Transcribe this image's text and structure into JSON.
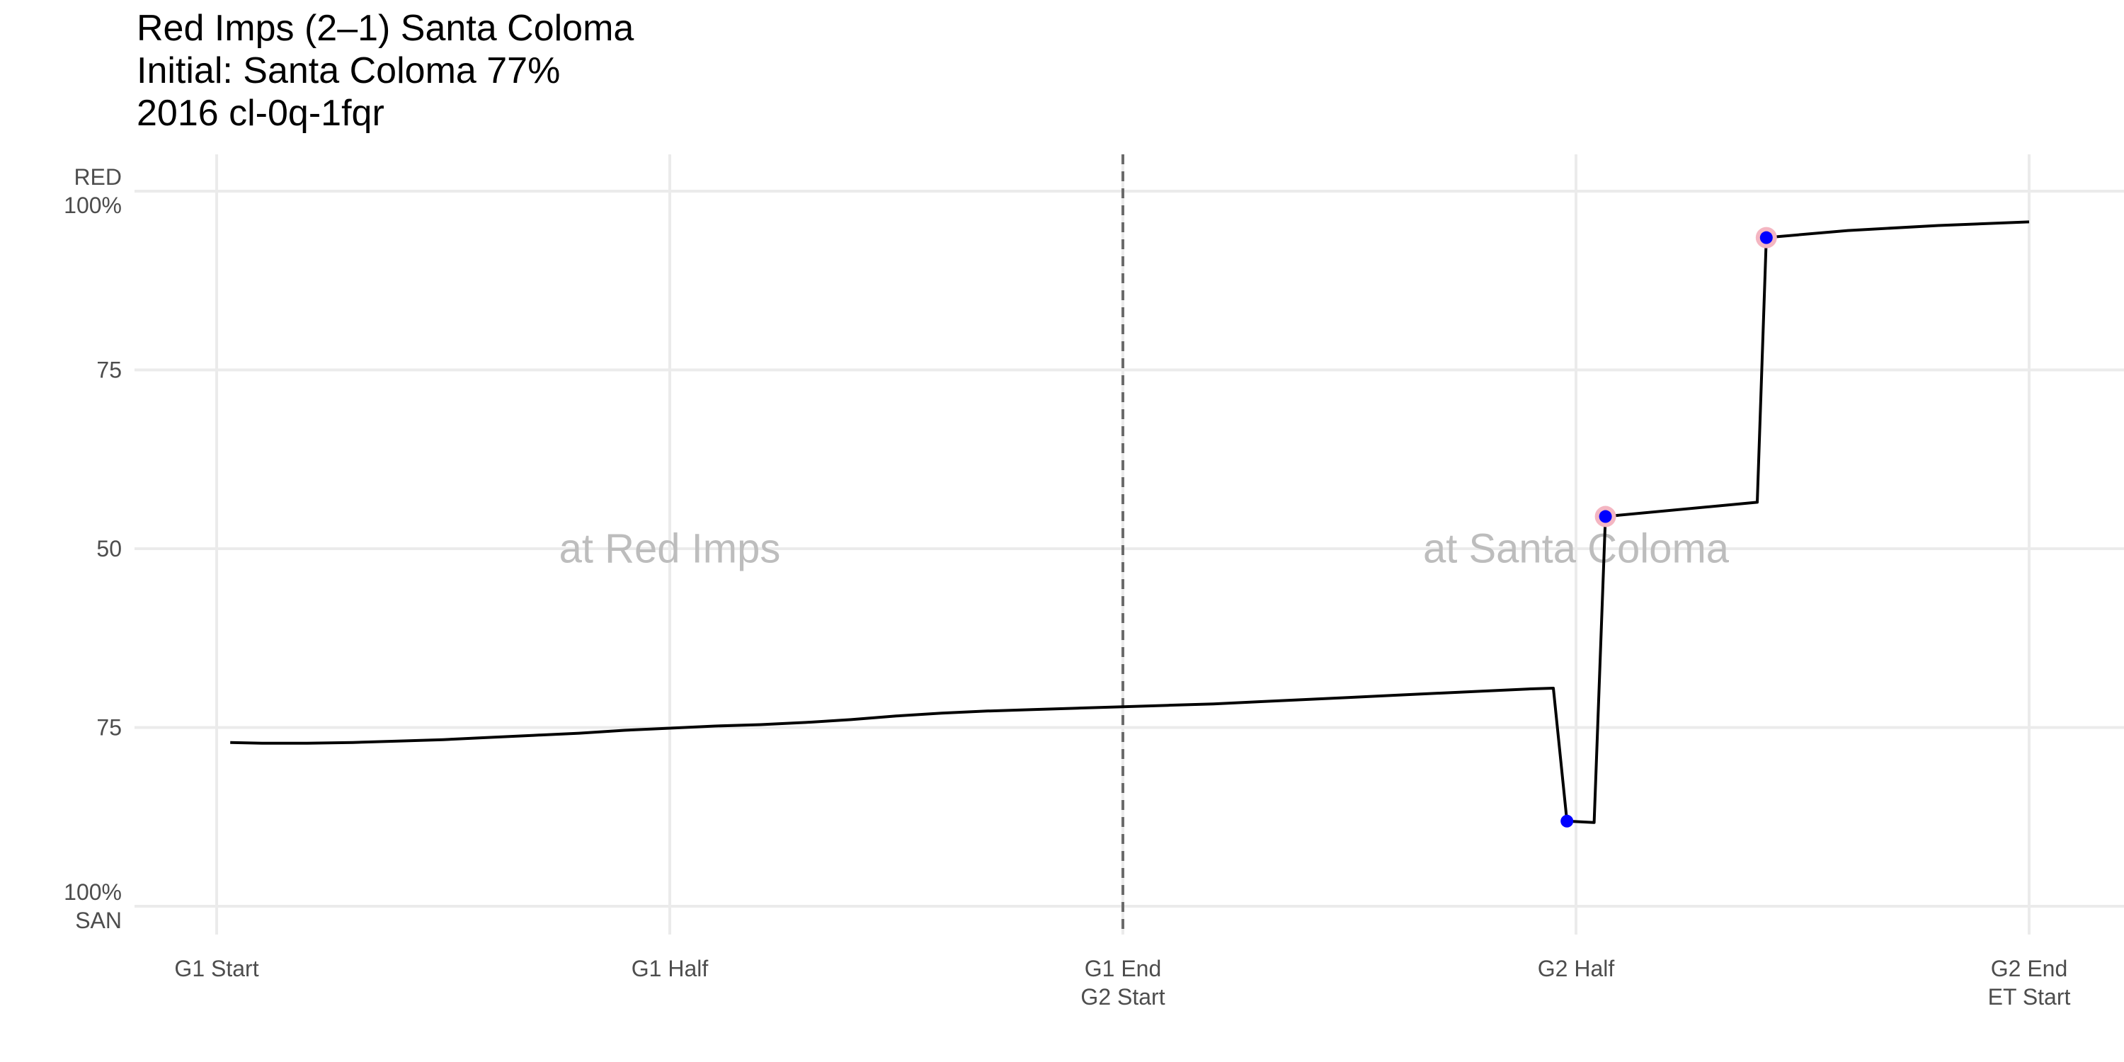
{
  "titles": {
    "line1": "Red Imps (2–1) Santa Coloma",
    "line2": "Initial: Santa Coloma 77%",
    "line3": "2016 cl-0q-1fqr"
  },
  "chart_data": {
    "type": "line",
    "xlim": [
      0,
      4
    ],
    "ylim": [
      0,
      1
    ],
    "y_meaning": "Red Imps win probability (0 = Santa Coloma 100%, 1 = Red Imps 100%)",
    "grid": true,
    "x_ticks": [
      {
        "value": 0,
        "lines": [
          "G1 Start"
        ]
      },
      {
        "value": 1,
        "lines": [
          "G1 Half"
        ]
      },
      {
        "value": 2,
        "lines": [
          "G1 End",
          "G2 Start"
        ]
      },
      {
        "value": 3,
        "lines": [
          "G2 Half"
        ]
      },
      {
        "value": 4,
        "lines": [
          "G2 End",
          "ET Start"
        ]
      }
    ],
    "y_ticks": [
      {
        "value": 1,
        "lines": [
          "RED",
          "100%"
        ]
      },
      {
        "value": 0.75,
        "lines": [
          "75"
        ]
      },
      {
        "value": 0.5,
        "lines": [
          "50"
        ]
      },
      {
        "value": 0.25,
        "lines": [
          "75"
        ]
      },
      {
        "value": 0,
        "lines": [
          "100%",
          "SAN"
        ]
      }
    ],
    "divider_x": 2,
    "annotations": [
      {
        "text": "at Red Imps",
        "x": 1,
        "y": 0.5
      },
      {
        "text": "at Santa Coloma",
        "x": 3,
        "y": 0.5
      }
    ],
    "series": [
      {
        "color": "#000000",
        "points": [
          [
            0.03,
            0.229
          ],
          [
            0.1,
            0.228
          ],
          [
            0.2,
            0.228
          ],
          [
            0.3,
            0.229
          ],
          [
            0.4,
            0.231
          ],
          [
            0.5,
            0.233
          ],
          [
            0.6,
            0.236
          ],
          [
            0.7,
            0.239
          ],
          [
            0.8,
            0.242
          ],
          [
            0.9,
            0.246
          ],
          [
            1.0,
            0.249
          ],
          [
            1.1,
            0.252
          ],
          [
            1.2,
            0.254
          ],
          [
            1.3,
            0.257
          ],
          [
            1.4,
            0.261
          ],
          [
            1.5,
            0.266
          ],
          [
            1.6,
            0.27
          ],
          [
            1.7,
            0.273
          ],
          [
            1.8,
            0.275
          ],
          [
            1.9,
            0.277
          ],
          [
            2.0,
            0.279
          ],
          [
            2.1,
            0.281
          ],
          [
            2.2,
            0.283
          ],
          [
            2.3,
            0.286
          ],
          [
            2.4,
            0.289
          ],
          [
            2.5,
            0.292
          ],
          [
            2.6,
            0.295
          ],
          [
            2.7,
            0.298
          ],
          [
            2.8,
            0.301
          ],
          [
            2.9,
            0.304
          ],
          [
            2.95,
            0.305
          ],
          [
            2.98,
            0.119
          ],
          [
            3.04,
            0.117
          ],
          [
            3.065,
            0.545
          ],
          [
            3.4,
            0.565
          ],
          [
            3.42,
            0.935
          ],
          [
            3.6,
            0.945
          ],
          [
            3.8,
            0.952
          ],
          [
            4.0,
            0.957
          ]
        ]
      }
    ],
    "markers": [
      {
        "x": 2.98,
        "y": 0.119,
        "color": "#0000ff",
        "halo": false
      },
      {
        "x": 3.065,
        "y": 0.545,
        "color": "#0000ff",
        "halo": true,
        "halo_color": "#f4b6c2"
      },
      {
        "x": 3.42,
        "y": 0.935,
        "color": "#0000ff",
        "halo": true,
        "halo_color": "#f4b6c2"
      }
    ]
  }
}
